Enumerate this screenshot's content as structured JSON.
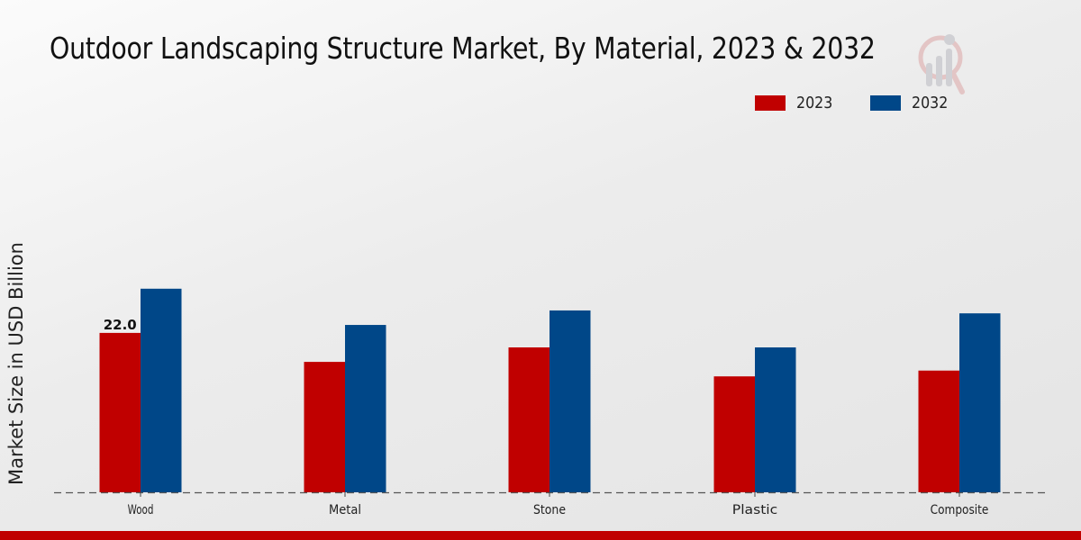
{
  "chart_data": {
    "type": "bar",
    "title": "Outdoor Landscaping Structure Market, By Material, 2023 & 2032",
    "xlabel": "",
    "ylabel": "Market Size in USD Billion",
    "categories": [
      "Wood",
      "Metal",
      "Stone",
      "Plastic",
      "Composite"
    ],
    "series": [
      {
        "name": "2023",
        "color": "#c00000",
        "values": [
          22.0,
          18.0,
          20.0,
          16.0,
          16.8
        ]
      },
      {
        "name": "2032",
        "color": "#004788",
        "values": [
          28.1,
          23.1,
          25.1,
          20.0,
          24.7
        ]
      }
    ],
    "data_labels": [
      {
        "series": "2023",
        "category": "Wood",
        "text": "22.0"
      }
    ],
    "ylim": [
      0,
      30
    ],
    "grid": false,
    "legend_position": "top-right",
    "baseline_style": "dashed"
  },
  "watermark_icon": "market-research-logo-icon"
}
